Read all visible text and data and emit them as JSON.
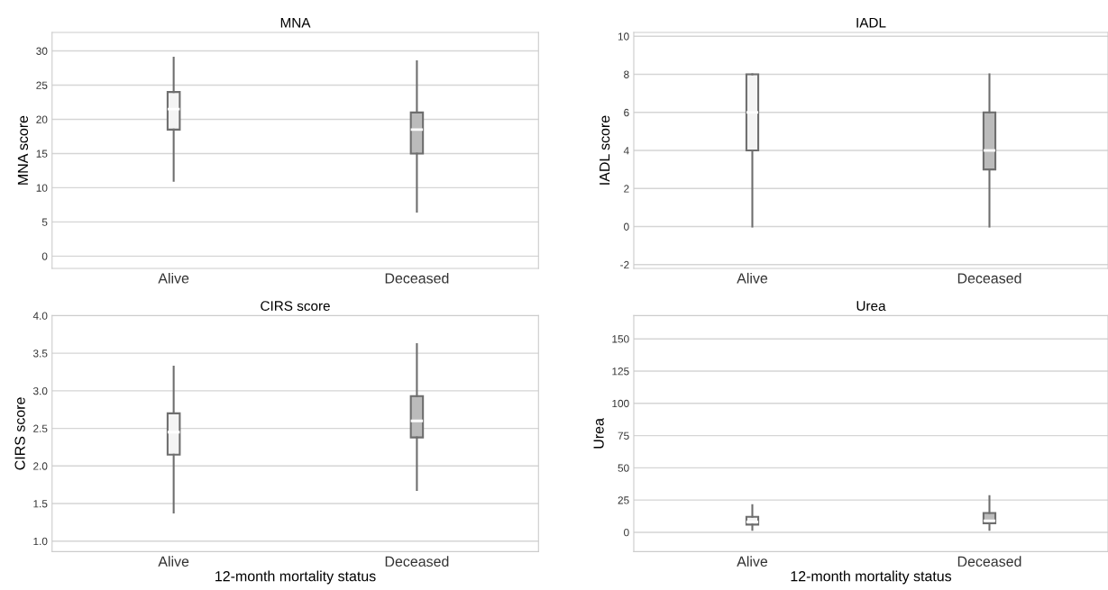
{
  "chart_data": [
    {
      "type": "box",
      "title": "MNA",
      "ylabel": "MNA score",
      "categories": [
        "Alive",
        "Deceased"
      ],
      "colors": [
        "#f4f4f4",
        "#bbbbbb"
      ],
      "grid": "y",
      "ylim": [
        -1.8,
        32.7
      ],
      "yticks": [
        0,
        5,
        10,
        15,
        20,
        25,
        30
      ],
      "boxes": [
        {
          "low": 11,
          "q1": 18.5,
          "median": 21.5,
          "q3": 24,
          "high": 29
        },
        {
          "low": 6.5,
          "q1": 15,
          "median": 18.5,
          "q3": 21,
          "high": 28.5
        }
      ]
    },
    {
      "type": "box",
      "title": "IADL",
      "ylabel": "IADL score",
      "categories": [
        "Alive",
        "Deceased"
      ],
      "colors": [
        "#f4f4f4",
        "#bbbbbb"
      ],
      "grid": "y",
      "ylim": [
        -2.2,
        10.2
      ],
      "yticks": [
        -2,
        0,
        2,
        4,
        6,
        8,
        10
      ],
      "boxes": [
        {
          "low": 0,
          "q1": 4,
          "median": 6,
          "q3": 8,
          "high": 8
        },
        {
          "low": 0,
          "q1": 3,
          "median": 4,
          "q3": 6,
          "high": 8
        }
      ]
    },
    {
      "type": "box",
      "title": "CIRS score",
      "ylabel": "CIRS score",
      "xlabel": "12-month mortality status",
      "categories": [
        "Alive",
        "Deceased"
      ],
      "colors": [
        "#f4f4f4",
        "#bbbbbb"
      ],
      "grid": "y",
      "ylim": [
        0.86,
        4.0
      ],
      "yticks": [
        {
          "value": 1,
          "label": "1.0"
        },
        1.5,
        {
          "value": 2,
          "label": "2.0"
        },
        2.5,
        {
          "value": 3,
          "label": "3.0"
        },
        3.5,
        {
          "value": 4,
          "label": "4.0"
        }
      ],
      "boxes": [
        {
          "low": 1.38,
          "q1": 2.15,
          "median": 2.45,
          "q3": 2.7,
          "high": 3.32
        },
        {
          "low": 1.68,
          "q1": 2.38,
          "median": 2.6,
          "q3": 2.93,
          "high": 3.62
        }
      ]
    },
    {
      "type": "box",
      "title": "Urea",
      "ylabel": "Urea",
      "xlabel": "12-month mortality status",
      "categories": [
        "Alive",
        "Deceased"
      ],
      "colors": [
        "#f4f4f4",
        "#bbbbbb"
      ],
      "grid": "y",
      "ylim": [
        -15,
        168
      ],
      "yticks": [
        0,
        25,
        50,
        75,
        100,
        125,
        150
      ],
      "boxes": [
        {
          "low": 2,
          "q1": 6,
          "median": 8,
          "q3": 12,
          "high": 21
        },
        {
          "low": 2,
          "q1": 7,
          "median": 9,
          "q3": 15,
          "high": 28
        }
      ]
    }
  ]
}
